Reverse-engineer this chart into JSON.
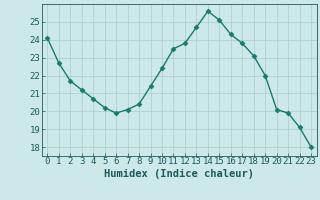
{
  "x": [
    0,
    1,
    2,
    3,
    4,
    5,
    6,
    7,
    8,
    9,
    10,
    11,
    12,
    13,
    14,
    15,
    16,
    17,
    18,
    19,
    20,
    21,
    22,
    23
  ],
  "y": [
    24.1,
    22.7,
    21.7,
    21.2,
    20.7,
    20.2,
    19.9,
    20.1,
    20.4,
    21.4,
    22.4,
    23.5,
    23.8,
    24.7,
    25.6,
    25.1,
    24.3,
    23.8,
    23.1,
    22.0,
    20.1,
    19.9,
    19.1,
    18.0
  ],
  "line_color": "#1a7a6e",
  "marker": "D",
  "marker_size": 2.5,
  "bg_color": "#cce8e8",
  "grid_color": "#aacccc",
  "xlabel": "Humidex (Indice chaleur)",
  "ylim": [
    17.5,
    26.0
  ],
  "xlim": [
    -0.5,
    23.5
  ],
  "yticks": [
    18,
    19,
    20,
    21,
    22,
    23,
    24,
    25
  ],
  "xticks": [
    0,
    1,
    2,
    3,
    4,
    5,
    6,
    7,
    8,
    9,
    10,
    11,
    12,
    13,
    14,
    15,
    16,
    17,
    18,
    19,
    20,
    21,
    22,
    23
  ],
  "xtick_labels": [
    "0",
    "1",
    "2",
    "3",
    "4",
    "5",
    "6",
    "7",
    "8",
    "9",
    "10",
    "11",
    "12",
    "13",
    "14",
    "15",
    "16",
    "17",
    "18",
    "19",
    "20",
    "21",
    "22",
    "23"
  ],
  "tick_color": "#1a5a5a",
  "spine_color": "#1a5a5a",
  "xlabel_color": "#1a5a5a",
  "xlabel_fontsize": 7.5,
  "tick_fontsize": 6.5,
  "linewidth": 1.0
}
